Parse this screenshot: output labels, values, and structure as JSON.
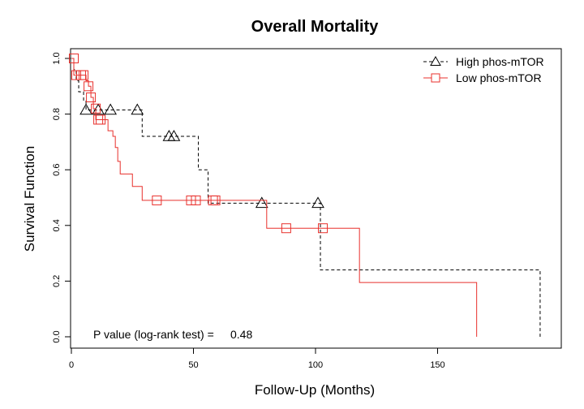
{
  "chart_data": {
    "type": "line",
    "title": "Overall Mortality",
    "xlabel": "Follow-Up (Months)",
    "ylabel": "Survival Function",
    "xlim": [
      0,
      200
    ],
    "ylim": [
      0,
      1
    ],
    "x_ticks": [
      0,
      50,
      100,
      150
    ],
    "x_tick_labels": [
      "0",
      "50",
      "100",
      "150"
    ],
    "y_ticks": [
      0.0,
      0.2,
      0.4,
      0.6,
      0.8,
      1.0
    ],
    "y_tick_labels": [
      "0.0",
      "0.2",
      "0.4",
      "0.6",
      "0.8",
      "1.0"
    ],
    "grid": false,
    "legend_position": "top-right",
    "annotation": {
      "label": "P value (log-rank test) =",
      "value": "0.48"
    },
    "series": [
      {
        "name": "High phos-mTOR",
        "color": "#000000",
        "line_style": "dashed",
        "marker": "triangle",
        "steps": [
          {
            "x": 0,
            "y": 1.0
          },
          {
            "x": 1,
            "y": 0.96
          },
          {
            "x": 2,
            "y": 0.92
          },
          {
            "x": 3,
            "y": 0.88
          },
          {
            "x": 5,
            "y": 0.85
          },
          {
            "x": 6,
            "y": 0.815
          },
          {
            "x": 29,
            "y": 0.72
          },
          {
            "x": 52,
            "y": 0.6
          },
          {
            "x": 56,
            "y": 0.48
          },
          {
            "x": 102,
            "y": 0.24
          },
          {
            "x": 192,
            "y": 0.0
          }
        ],
        "end_x": 192,
        "censored": [
          {
            "x": 6,
            "y": 0.815
          },
          {
            "x": 11,
            "y": 0.815
          },
          {
            "x": 16,
            "y": 0.815
          },
          {
            "x": 27,
            "y": 0.815
          },
          {
            "x": 40,
            "y": 0.72
          },
          {
            "x": 42,
            "y": 0.72
          },
          {
            "x": 78,
            "y": 0.48
          },
          {
            "x": 101,
            "y": 0.48
          }
        ]
      },
      {
        "name": "Low phos-mTOR",
        "color": "#e8302c",
        "line_style": "solid",
        "marker": "square",
        "steps": [
          {
            "x": 0,
            "y": 1.0
          },
          {
            "x": 1,
            "y": 0.94
          },
          {
            "x": 6,
            "y": 0.92
          },
          {
            "x": 7,
            "y": 0.9
          },
          {
            "x": 8,
            "y": 0.86
          },
          {
            "x": 9,
            "y": 0.82
          },
          {
            "x": 10,
            "y": 0.78
          },
          {
            "x": 15,
            "y": 0.74
          },
          {
            "x": 17,
            "y": 0.72
          },
          {
            "x": 18,
            "y": 0.68
          },
          {
            "x": 19,
            "y": 0.63
          },
          {
            "x": 20,
            "y": 0.585
          },
          {
            "x": 25,
            "y": 0.54
          },
          {
            "x": 29,
            "y": 0.49
          },
          {
            "x": 80,
            "y": 0.39
          },
          {
            "x": 118,
            "y": 0.195
          },
          {
            "x": 166,
            "y": 0.0
          }
        ],
        "end_x": 166,
        "censored": [
          {
            "x": 1,
            "y": 1.0
          },
          {
            "x": 2,
            "y": 0.94
          },
          {
            "x": 4,
            "y": 0.94
          },
          {
            "x": 5,
            "y": 0.94
          },
          {
            "x": 7,
            "y": 0.9
          },
          {
            "x": 8,
            "y": 0.86
          },
          {
            "x": 10,
            "y": 0.82
          },
          {
            "x": 11,
            "y": 0.78
          },
          {
            "x": 12,
            "y": 0.78
          },
          {
            "x": 35,
            "y": 0.49
          },
          {
            "x": 49,
            "y": 0.49
          },
          {
            "x": 51,
            "y": 0.49
          },
          {
            "x": 58,
            "y": 0.49
          },
          {
            "x": 59,
            "y": 0.49
          },
          {
            "x": 88,
            "y": 0.39
          },
          {
            "x": 103,
            "y": 0.39
          }
        ]
      }
    ]
  }
}
